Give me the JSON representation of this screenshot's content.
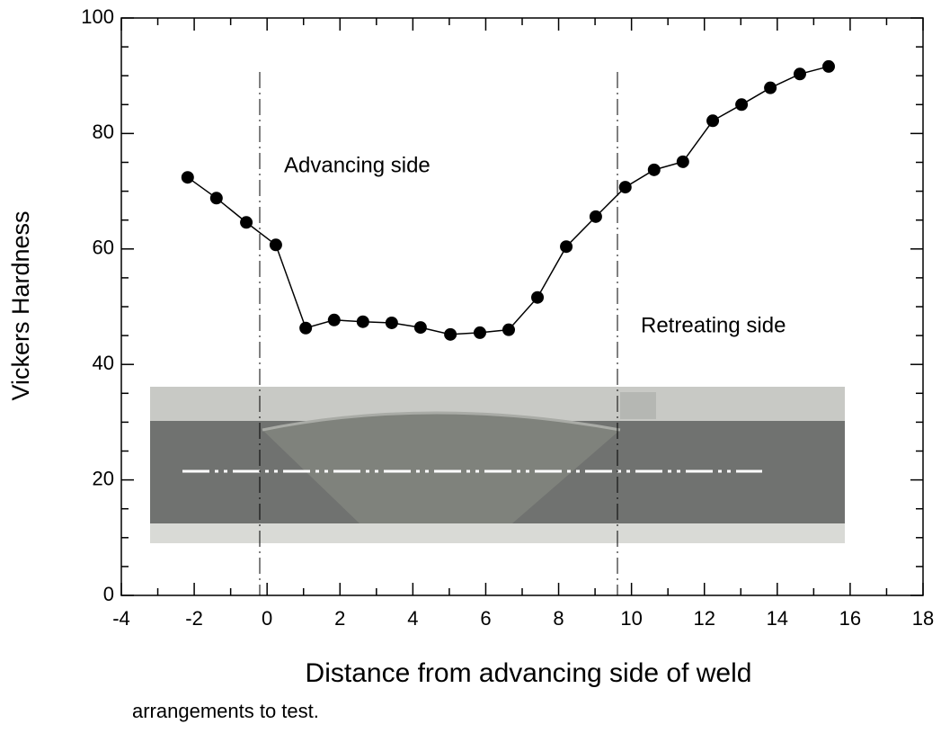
{
  "chart_data": {
    "type": "line",
    "xlabel": "Distance from advancing side of weld",
    "ylabel": "Vickers Hardness",
    "annotations": [
      "Advancing side",
      "Retreating side"
    ],
    "x": [
      -2.18,
      -1.39,
      -0.57,
      0.24,
      1.06,
      1.84,
      2.63,
      3.42,
      4.21,
      5.03,
      5.84,
      6.63,
      7.42,
      8.21,
      9.02,
      9.83,
      10.62,
      11.41,
      12.23,
      13.02,
      13.81,
      14.62,
      15.41
    ],
    "series": [
      {
        "color": "#000000",
        "values": [
          72.4,
          68.8,
          64.6,
          60.7,
          46.3,
          47.7,
          47.4,
          47.2,
          46.4,
          45.2,
          45.5,
          46.0,
          51.6,
          60.4,
          65.6,
          70.7,
          73.7,
          75.1,
          82.2,
          85.0,
          87.9,
          90.3,
          91.6
        ]
      }
    ],
    "xlim": [
      -4,
      18
    ],
    "xticks": [
      -4,
      -2,
      0,
      2,
      4,
      6,
      8,
      10,
      12,
      14,
      16,
      18
    ],
    "xminorticks": [
      -3,
      -1,
      1,
      3,
      5,
      7,
      9,
      11,
      13,
      15,
      17
    ],
    "ylim": [
      0,
      100
    ],
    "yticks": [
      0,
      20,
      40,
      60,
      80,
      100
    ],
    "yminorticks": [
      5,
      10,
      15,
      25,
      30,
      35,
      45,
      50,
      55,
      65,
      70,
      75,
      85,
      90,
      95
    ]
  },
  "caption": "arrangements to test."
}
